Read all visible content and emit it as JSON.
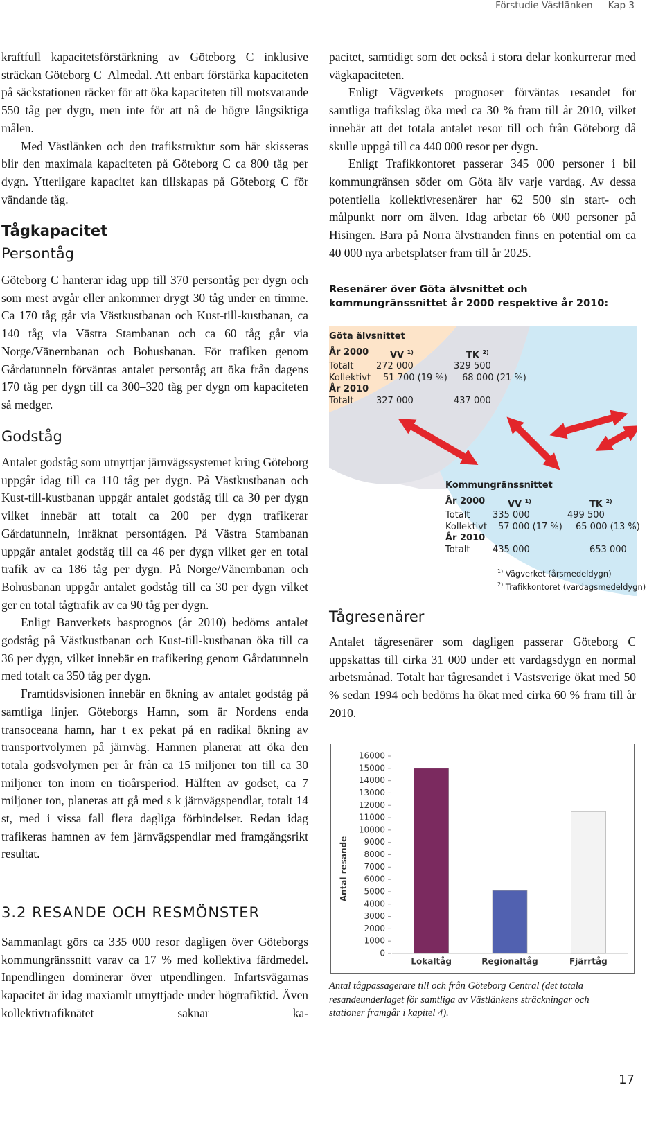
{
  "header": {
    "running_title": "Förstudie Västlänken — Kap 3"
  },
  "left": {
    "p1": "kraftfull kapacitetsförstärkning av Göteborg C inklusive sträckan Göteborg C–Almedal. Att enbart förstärka kapaciteten på säckstationen räcker för att öka kapaciteten till motsvarande 550 tåg per dygn, men inte för att nå de högre långsiktiga målen.",
    "p2": "Med Västlänken och den trafikstruktur som här skisseras blir den maximala kapaciteten på Göteborg C ca 800 tåg per dygn. Ytterligare kapacitet kan tillskapas på Göteborg C för vändande tåg.",
    "h_tagkapacitet": "Tågkapacitet",
    "h_persontag": "Persontåg",
    "p3": "Göteborg C hanterar idag upp till 370 persontåg per dygn och som mest avgår eller ankommer drygt 30 tåg under en timme. Ca 170 tåg går via Västkustbanan och Kust-till-kustbanan, ca 140 tåg via Västra Stambanan och ca 60 tåg går via Norge/Vänernbanan och Bohusbanan. För trafiken genom Gårdatunneln förväntas antalet persontåg att öka från dagens 170 tåg per dygn till ca 300–320 tåg per dygn om kapaciteten så medger.",
    "h_godstag": "Godståg",
    "p4": "Antalet godståg som utnyttjar järnvägssystemet kring Göteborg uppgår idag till ca 110 tåg per dygn. På Västkustbanan och Kust-till-kustbanan uppgår antalet godståg till ca 30 per dygn vilket innebär att totalt ca 200 per dygn trafikerar Gårdatunneln, inräknat persontågen. På Västra Stambanan uppgår antalet godståg till ca 46 per dygn vilket ger en total trafik av ca 186 tåg per dygn. På Norge/Vänernbanan och Bohusbanan uppgår antalet godståg till ca 30 per dygn vilket ger en total tågtrafik av ca 90 tåg per dygn.",
    "p5": "Enligt Banverkets basprognos (år 2010) bedöms antalet godståg på Västkustbanan och Kust-till-kustbanan öka till ca 36 per dygn, vilket innebär en trafikering genom Gårdatunneln med totalt ca 350 tåg per dygn.",
    "p6": "Framtidsvisionen innebär en ökning av antalet godståg på samtliga linjer. Göteborgs Hamn, som är Nordens enda transoceana hamn, har t ex pekat på en radikal ökning av transportvolymen på järnväg. Hamnen planerar att öka den totala godsvolymen per år från ca 15 miljoner ton till ca 30 miljoner ton inom en tioårsperiod. Hälften av godset, ca 7 miljoner ton, planeras att gå med s k järnvägspendlar, totalt 14 st, med i vissa fall flera dagliga förbindelser. Redan idag trafikeras hamnen av fem järnvägspendlar med framgångsrikt resultat.",
    "h_section": "3.2 RESANDE OCH RESMÖNSTER",
    "p7": "Sammanlagt görs ca 335 000 resor dagligen över Göteborgs kommungränssnitt varav ca 17 % med kollektiva färdmedel. Inpendlingen dominerar över utpendlingen. Infartsvägarnas kapacitet är idag maxiamlt utnyttjade under högtrafiktid. Även kollektivtrafiknätet saknar ka-"
  },
  "right": {
    "p1": "pacitet, samtidigt som det också i stora delar konkurrerar med vägkapaciteten.",
    "p2": "Enligt Vägverkets prognoser förväntas resandet för samtliga trafikslag öka med ca 30 % fram till år 2010, vilket innebär att det totala antalet resor till och från Göteborg då skulle uppgå till ca 440 000 resor per dygn.",
    "p3": "Enligt Trafikkontoret passerar 345 000 personer i bil kommungränsen söder om Göta älv varje vardag. Av dessa potentiella kollektivresenärer har 62 500 sin start- och målpunkt norr om älven. Idag arbetar 66 000 personer på Hisingen. Bara på Norra älvstranden finns en potential om ca 40 000 nya arbetsplatser fram till år 2025.",
    "h_tagresenarer": "Tågresenärer",
    "p4": "Antalet tågresenärer som dagligen passerar Göteborg C uppskattas till cirka 31 000 under ett vardagsdygn en normal arbetsmånad. Totalt har tågresandet i Västsverige ökat med 50 % sedan 1994 och bedöms ha ökat med cirka 60 % fram till år 2010."
  },
  "diagram": {
    "title": "Resenärer över Göta älvsnittet och kommungränssnittet år 2000 respektive år 2010:",
    "gota": {
      "title": "Göta älvsnittet",
      "year1": "År 2000",
      "col1": "VV",
      "sup1": "1)",
      "col2": "TK",
      "sup2": "2)",
      "rows": [
        [
          "Totalt",
          "272 000",
          "329 500"
        ],
        [
          "Kollektivt",
          "51 700 (19 %)",
          "68 000 (21 %)"
        ]
      ],
      "year2": "År 2010",
      "rows2": [
        [
          "Totalt",
          "327 000",
          "437 000"
        ]
      ]
    },
    "kommun": {
      "title": "Kommungränssnittet",
      "year1": "År 2000",
      "col1": "VV",
      "sup1": "1)",
      "col2": "TK",
      "sup2": "2)",
      "rows": [
        [
          "Totalt",
          "335 000",
          "499 500"
        ],
        [
          "Kollektivt",
          "57 000 (17 %)",
          "65 000 (13 %)"
        ]
      ],
      "year2": "År 2010",
      "rows2": [
        [
          "Totalt",
          "435 000",
          "653 000"
        ]
      ]
    },
    "footnotes": [
      {
        "mark": "1)",
        "text": "Vägverket (årsmedeldygn)"
      },
      {
        "mark": "2)",
        "text": "Trafikkontoret (vardagsmedeldygn)"
      }
    ]
  },
  "chart_data": {
    "type": "bar",
    "ylabel": "Antal resande",
    "categories": [
      "Lokaltåg",
      "Regionaltåg",
      "Fjärrtåg"
    ],
    "values": [
      15000,
      5100,
      11500
    ],
    "colors": [
      "#7b2a5f",
      "#5161b0",
      "#f3f3f3"
    ],
    "ylim": [
      0,
      16000
    ],
    "yticks": [
      0,
      1000,
      2000,
      3000,
      4000,
      5000,
      6000,
      7000,
      8000,
      9000,
      10000,
      11000,
      12000,
      13000,
      14000,
      15000,
      16000
    ],
    "grid": false,
    "caption": "Antal tågpassagerare till och från Göteborg Central (det totala resandeunderlaget för samtliga av Västlänkens sträckningar och stationer framgår i kapitel 4)."
  },
  "footer": {
    "page_number": "17"
  }
}
